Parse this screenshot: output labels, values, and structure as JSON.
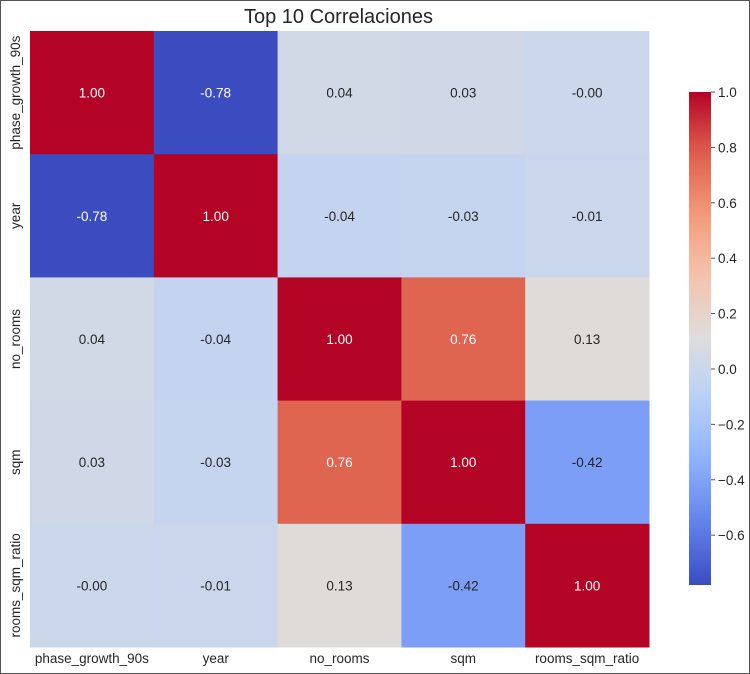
{
  "chart_data": {
    "type": "heatmap",
    "title": "Top 10 Correlaciones",
    "rows": [
      "phase_growth_90s",
      "year",
      "no_rooms",
      "sqm",
      "rooms_sqm_ratio"
    ],
    "columns": [
      "phase_growth_90s",
      "year",
      "no_rooms",
      "sqm",
      "rooms_sqm_ratio"
    ],
    "values": [
      [
        1.0,
        -0.78,
        0.04,
        0.03,
        -0.0
      ],
      [
        -0.78,
        1.0,
        -0.04,
        -0.03,
        -0.01
      ],
      [
        0.04,
        -0.04,
        1.0,
        0.76,
        0.13
      ],
      [
        0.03,
        -0.03,
        0.76,
        1.0,
        -0.42
      ],
      [
        -0.0,
        -0.01,
        0.13,
        -0.42,
        1.0
      ]
    ],
    "cell_labels": [
      [
        "1.00",
        "-0.78",
        "0.04",
        "0.03",
        "-0.00"
      ],
      [
        "-0.78",
        "1.00",
        "-0.04",
        "-0.03",
        "-0.01"
      ],
      [
        "0.04",
        "-0.04",
        "1.00",
        "0.76",
        "0.13"
      ],
      [
        "0.03",
        "-0.03",
        "0.76",
        "1.00",
        "-0.42"
      ],
      [
        "-0.00",
        "-0.01",
        "0.13",
        "-0.42",
        "1.00"
      ]
    ],
    "colormap": "coolwarm",
    "colorbar": {
      "range": [
        -0.78,
        1.0
      ],
      "ticks": [
        1.0,
        0.8,
        0.6,
        0.4,
        0.2,
        0.0,
        -0.2,
        -0.4,
        -0.6
      ],
      "tick_labels": [
        "1.0",
        "0.8",
        "0.6",
        "0.4",
        "0.2",
        "0.0",
        "−0.2",
        "−0.4",
        "−0.6"
      ],
      "placement": "right"
    },
    "grid": false
  }
}
